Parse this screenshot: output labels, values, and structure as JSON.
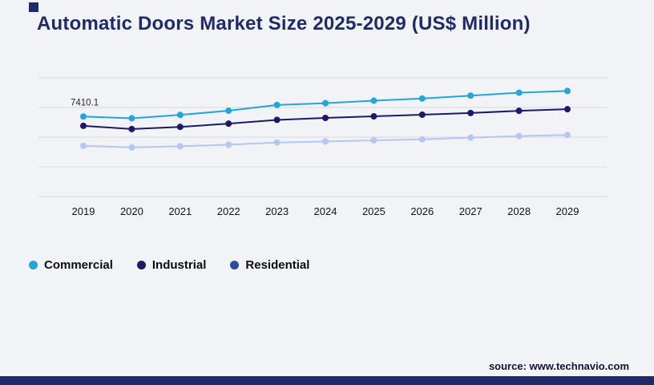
{
  "title": "Automatic Doors Market Size 2025-2029 (US$ Million)",
  "source": "source: www.technavio.com",
  "colors": {
    "accent": "#1f2a68",
    "background": "#f1f3f7",
    "gridline": "#d8dae0",
    "bottom_bar": "#1f2a68"
  },
  "legend": {
    "position": "bottom",
    "items": [
      {
        "label": "Commercial",
        "color": "#25a3da"
      },
      {
        "label": "Industrial",
        "color": "#1d1966"
      },
      {
        "label": "Residential",
        "color": "#2b4da0"
      }
    ]
  },
  "chart_data": {
    "type": "line",
    "title": "Automatic Doors Market Size 2025-2029 (US$ Million)",
    "categories": [
      "2019",
      "2020",
      "2021",
      "2022",
      "2023",
      "2024",
      "2025",
      "2026",
      "2027",
      "2028",
      "2029"
    ],
    "series": [
      {
        "name": "Commercial",
        "color": "#25a3da",
        "values": [
          7410.1,
          7250,
          7560,
          7950,
          8480,
          8650,
          8880,
          9080,
          9350,
          9620,
          9780
        ]
      },
      {
        "name": "Industrial",
        "color": "#1d1966",
        "values": [
          6550,
          6250,
          6450,
          6750,
          7100,
          7280,
          7430,
          7580,
          7740,
          7940,
          8090
        ]
      },
      {
        "name": "Residential",
        "color": "#b5c7ee",
        "values": [
          4700,
          4550,
          4650,
          4800,
          5000,
          5100,
          5200,
          5300,
          5450,
          5600,
          5700
        ]
      }
    ],
    "xlabel": "",
    "ylabel": "",
    "ylim": [
      0,
      11000
    ],
    "grid": true,
    "gridlines": 5,
    "legend_position": "bottom",
    "annotations": [
      {
        "text": "7410.1",
        "series": "Commercial",
        "category": "2019"
      }
    ]
  }
}
